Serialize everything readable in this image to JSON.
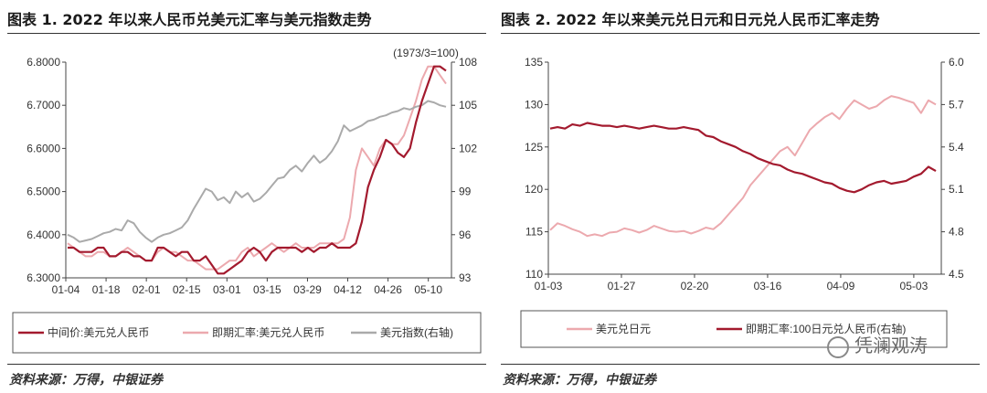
{
  "left": {
    "title": "图表 1. 2022 年以来人民币兑美元汇率与美元指数走势",
    "source": "资料来源：万得，中银证券",
    "annotation": "(1973/3=100)"
  },
  "right": {
    "title": "图表 2. 2022 年以来美元兑日元和日元兑人民币汇率走势",
    "source": "资料来源：万得，中银证券",
    "watermark": "凭澜观涛"
  },
  "colors": {
    "dark_red": "#a31a2e",
    "pink": "#eca9ae",
    "gray": "#aaaaaa",
    "axis": "#444444"
  },
  "chart_data": [
    {
      "type": "line",
      "x_ticks": [
        "01-04",
        "01-18",
        "02-01",
        "02-15",
        "03-01",
        "03-15",
        "03-29",
        "04-12",
        "04-26",
        "05-10"
      ],
      "y_left": {
        "ticks": [
          "6.3000",
          "6.4000",
          "6.5000",
          "6.6000",
          "6.7000",
          "6.8000"
        ],
        "lim": [
          6.3,
          6.8
        ]
      },
      "y_right": {
        "ticks": [
          "93",
          "96",
          "99",
          "102",
          "105",
          "108"
        ],
        "lim": [
          93,
          108
        ]
      },
      "series": [
        {
          "name": "中间价:美元兑人民币",
          "axis": "left",
          "color": "dark_red",
          "values": [
            6.37,
            6.37,
            6.36,
            6.36,
            6.36,
            6.37,
            6.37,
            6.35,
            6.35,
            6.36,
            6.36,
            6.35,
            6.35,
            6.34,
            6.34,
            6.37,
            6.37,
            6.36,
            6.35,
            6.36,
            6.36,
            6.34,
            6.34,
            6.35,
            6.33,
            6.31,
            6.31,
            6.32,
            6.33,
            6.34,
            6.36,
            6.37,
            6.36,
            6.34,
            6.36,
            6.37,
            6.37,
            6.37,
            6.37,
            6.36,
            6.37,
            6.36,
            6.37,
            6.37,
            6.38,
            6.37,
            6.37,
            6.37,
            6.38,
            6.43,
            6.51,
            6.55,
            6.58,
            6.62,
            6.61,
            6.59,
            6.58,
            6.6,
            6.66,
            6.71,
            6.75,
            6.79,
            6.79,
            6.78
          ]
        },
        {
          "name": "即期汇率:美元兑人民币",
          "axis": "left",
          "color": "pink",
          "values": [
            6.38,
            6.37,
            6.36,
            6.35,
            6.35,
            6.36,
            6.36,
            6.35,
            6.35,
            6.36,
            6.37,
            6.36,
            6.35,
            6.34,
            6.34,
            6.36,
            6.37,
            6.36,
            6.36,
            6.35,
            6.34,
            6.34,
            6.33,
            6.32,
            6.32,
            6.32,
            6.33,
            6.34,
            6.34,
            6.36,
            6.37,
            6.35,
            6.36,
            6.37,
            6.38,
            6.37,
            6.36,
            6.37,
            6.38,
            6.37,
            6.37,
            6.37,
            6.38,
            6.38,
            6.38,
            6.38,
            6.39,
            6.44,
            6.55,
            6.6,
            6.58,
            6.56,
            6.6,
            6.62,
            6.61,
            6.61,
            6.63,
            6.67,
            6.71,
            6.76,
            6.79,
            6.79,
            6.77,
            6.75
          ]
        },
        {
          "name": "美元指数(右轴)",
          "axis": "right",
          "color": "gray",
          "values": [
            96.0,
            95.8,
            95.5,
            95.6,
            95.7,
            95.9,
            96.1,
            96.2,
            96.4,
            96.3,
            97.0,
            96.8,
            96.2,
            95.8,
            95.5,
            95.8,
            96.0,
            96.1,
            96.3,
            96.5,
            97.0,
            97.8,
            98.5,
            99.2,
            99.0,
            98.4,
            98.6,
            98.2,
            99.0,
            98.6,
            98.9,
            98.3,
            98.5,
            98.9,
            99.4,
            99.9,
            100.0,
            100.5,
            100.8,
            100.4,
            101.0,
            101.5,
            101.0,
            101.3,
            101.8,
            102.5,
            103.6,
            103.2,
            103.4,
            103.6,
            103.9,
            104.0,
            104.2,
            104.3,
            104.5,
            104.6,
            104.8,
            104.7,
            104.9,
            105.0,
            105.3,
            105.2,
            105.0,
            104.9
          ]
        }
      ],
      "legend_position": "bottom"
    },
    {
      "type": "line",
      "x_ticks": [
        "01-03",
        "01-27",
        "02-20",
        "03-16",
        "04-09",
        "05-03"
      ],
      "y_left": {
        "ticks": [
          "110",
          "115",
          "120",
          "125",
          "130",
          "135"
        ],
        "lim": [
          110,
          135
        ]
      },
      "y_right": {
        "ticks": [
          "4.5",
          "4.8",
          "5.1",
          "5.4",
          "5.7",
          "6.0"
        ],
        "lim": [
          4.5,
          6.0
        ]
      },
      "series": [
        {
          "name": "美元兑日元",
          "axis": "left",
          "color": "pink",
          "values": [
            115.2,
            116.0,
            115.7,
            115.3,
            115.0,
            114.5,
            114.7,
            114.5,
            114.9,
            115.0,
            115.4,
            115.2,
            114.9,
            115.2,
            115.7,
            115.4,
            115.1,
            115.0,
            115.1,
            114.8,
            115.1,
            115.5,
            115.3,
            116.0,
            117.0,
            118.0,
            119.0,
            120.5,
            121.5,
            122.5,
            123.5,
            124.5,
            125.0,
            124.0,
            125.5,
            127.0,
            127.8,
            128.5,
            129.0,
            128.3,
            129.5,
            130.5,
            130.0,
            129.5,
            129.8,
            130.5,
            131.0,
            130.8,
            130.5,
            130.2,
            129.0,
            130.5,
            130.0
          ]
        },
        {
          "name": "即期汇率:100日元兑人民币(右轴)",
          "axis": "right",
          "color": "dark_red",
          "values": [
            5.53,
            5.54,
            5.53,
            5.56,
            5.55,
            5.57,
            5.56,
            5.55,
            5.55,
            5.54,
            5.55,
            5.54,
            5.53,
            5.54,
            5.55,
            5.54,
            5.53,
            5.53,
            5.54,
            5.53,
            5.52,
            5.48,
            5.47,
            5.44,
            5.42,
            5.4,
            5.37,
            5.35,
            5.32,
            5.3,
            5.28,
            5.27,
            5.24,
            5.22,
            5.21,
            5.19,
            5.17,
            5.15,
            5.14,
            5.11,
            5.09,
            5.08,
            5.1,
            5.13,
            5.15,
            5.16,
            5.14,
            5.15,
            5.16,
            5.19,
            5.21,
            5.26,
            5.23
          ]
        }
      ],
      "legend_position": "bottom"
    }
  ]
}
